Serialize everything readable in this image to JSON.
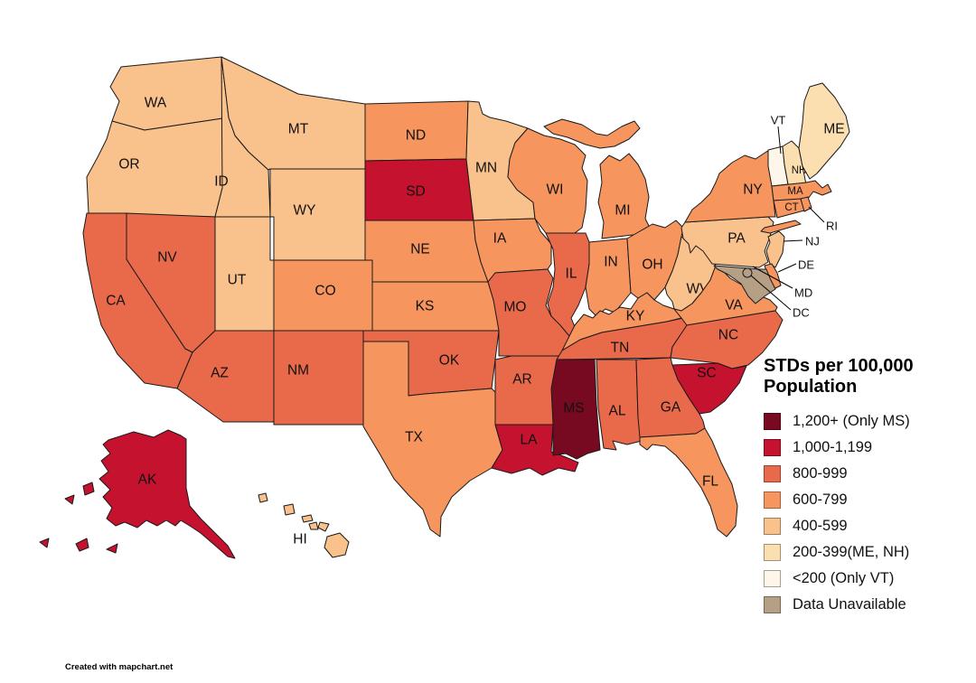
{
  "legend": {
    "title": "STDs per 100,000 Population",
    "items": [
      {
        "key": "cat_1200",
        "label": "1,200+ (Only MS)",
        "color": "#770a21"
      },
      {
        "key": "cat_1000",
        "label": "1,000-1,199",
        "color": "#c5122f"
      },
      {
        "key": "cat_800",
        "label": "800-999",
        "color": "#e9694b"
      },
      {
        "key": "cat_600",
        "label": "600-799",
        "color": "#f6955e"
      },
      {
        "key": "cat_400",
        "label": "400-599",
        "color": "#f9c18b"
      },
      {
        "key": "cat_200",
        "label": "200-399(ME, NH)",
        "color": "#fbdfb0"
      },
      {
        "key": "cat_0",
        "label": "<200 (Only VT)",
        "color": "#fdf6e9"
      },
      {
        "key": "unavailable",
        "label": "Data Unavailable",
        "color": "#b5a086"
      }
    ]
  },
  "map": {
    "border_color": "#1a1a1a",
    "states": [
      {
        "abbr": "WA",
        "category": "cat_400"
      },
      {
        "abbr": "OR",
        "category": "cat_400"
      },
      {
        "abbr": "CA",
        "category": "cat_800"
      },
      {
        "abbr": "ID",
        "category": "cat_400"
      },
      {
        "abbr": "NV",
        "category": "cat_800"
      },
      {
        "abbr": "MT",
        "category": "cat_400"
      },
      {
        "abbr": "WY",
        "category": "cat_400"
      },
      {
        "abbr": "UT",
        "category": "cat_400"
      },
      {
        "abbr": "CO",
        "category": "cat_600"
      },
      {
        "abbr": "AZ",
        "category": "cat_800"
      },
      {
        "abbr": "NM",
        "category": "cat_800"
      },
      {
        "abbr": "ND",
        "category": "cat_600"
      },
      {
        "abbr": "SD",
        "category": "cat_1000"
      },
      {
        "abbr": "NE",
        "category": "cat_600"
      },
      {
        "abbr": "KS",
        "category": "cat_600"
      },
      {
        "abbr": "OK",
        "category": "cat_800"
      },
      {
        "abbr": "TX",
        "category": "cat_600"
      },
      {
        "abbr": "MN",
        "category": "cat_400"
      },
      {
        "abbr": "IA",
        "category": "cat_600"
      },
      {
        "abbr": "MO",
        "category": "cat_800"
      },
      {
        "abbr": "AR",
        "category": "cat_800"
      },
      {
        "abbr": "LA",
        "category": "cat_1000"
      },
      {
        "abbr": "WI",
        "category": "cat_600"
      },
      {
        "abbr": "IL",
        "category": "cat_800"
      },
      {
        "abbr": "MI",
        "category": "cat_600"
      },
      {
        "abbr": "IN",
        "category": "cat_600"
      },
      {
        "abbr": "OH",
        "category": "cat_600"
      },
      {
        "abbr": "KY",
        "category": "cat_600"
      },
      {
        "abbr": "TN",
        "category": "cat_800"
      },
      {
        "abbr": "MS",
        "category": "cat_1200"
      },
      {
        "abbr": "AL",
        "category": "cat_800"
      },
      {
        "abbr": "GA",
        "category": "cat_800"
      },
      {
        "abbr": "FL",
        "category": "cat_600"
      },
      {
        "abbr": "WV",
        "category": "cat_400"
      },
      {
        "abbr": "VA",
        "category": "cat_600"
      },
      {
        "abbr": "NC",
        "category": "cat_800"
      },
      {
        "abbr": "SC",
        "category": "cat_1000"
      },
      {
        "abbr": "PA",
        "category": "cat_400"
      },
      {
        "abbr": "NY",
        "category": "cat_600"
      },
      {
        "abbr": "NJ",
        "category": "cat_400"
      },
      {
        "abbr": "DE",
        "category": "cat_600"
      },
      {
        "abbr": "MD",
        "category": "unavailable"
      },
      {
        "abbr": "DC",
        "category": "unavailable"
      },
      {
        "abbr": "VT",
        "category": "cat_0"
      },
      {
        "abbr": "NH",
        "category": "cat_200"
      },
      {
        "abbr": "ME",
        "category": "cat_200"
      },
      {
        "abbr": "MA",
        "category": "cat_600"
      },
      {
        "abbr": "CT",
        "category": "cat_600"
      },
      {
        "abbr": "RI",
        "category": "cat_600"
      },
      {
        "abbr": "AK",
        "category": "cat_1000"
      },
      {
        "abbr": "HI",
        "category": "cat_400"
      }
    ]
  },
  "footer": {
    "credit": "Created with mapchart.net"
  }
}
